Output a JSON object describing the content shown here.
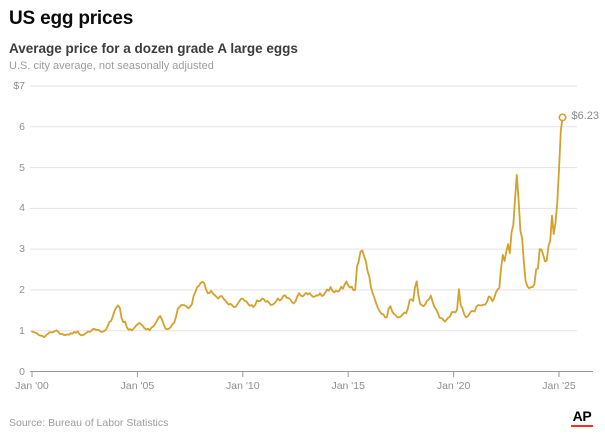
{
  "header": {
    "title": "US egg prices",
    "subtitle": "Average price for a dozen grade A large eggs",
    "note": "U.S. city average, not seasonally adjusted"
  },
  "footer": {
    "source": "Source: Bureau of Labor Statistics",
    "logo_text": "AP",
    "logo_underline_color": "#ee3224"
  },
  "chart_data": {
    "type": "line",
    "title": "US egg prices",
    "subtitle": "Average price for a dozen grade A large eggs",
    "note": "U.S. city average, not seasonally adjusted",
    "series_name": "Average price for a dozen grade A large eggs ($)",
    "x_start": "2000-01",
    "x_end": "2025-03",
    "x_frequency": "monthly",
    "ylim": [
      0,
      7
    ],
    "grid": true,
    "legend": false,
    "line_color": "#d4a12b",
    "grid_color": "#e3e3e3",
    "axis_color": "#9a9a9a",
    "yticks": [
      {
        "label": "$7",
        "value": 7
      },
      {
        "label": "6",
        "value": 6
      },
      {
        "label": "5",
        "value": 5
      },
      {
        "label": "4",
        "value": 4
      },
      {
        "label": "3",
        "value": 3
      },
      {
        "label": "2",
        "value": 2
      },
      {
        "label": "1",
        "value": 1
      },
      {
        "label": "0",
        "value": 0
      }
    ],
    "xticks": [
      {
        "label": "Jan '00",
        "month": 0
      },
      {
        "label": "Jan '05",
        "month": 60
      },
      {
        "label": "Jan '10",
        "month": 120
      },
      {
        "label": "Jan '15",
        "month": 180
      },
      {
        "label": "Jan '20",
        "month": 240
      },
      {
        "label": "Jan '25",
        "month": 300
      }
    ],
    "end_annotation": {
      "label": "$6.23",
      "value": 6.23
    },
    "values": [
      0.98,
      0.96,
      0.95,
      0.93,
      0.89,
      0.88,
      0.87,
      0.84,
      0.89,
      0.92,
      0.96,
      0.96,
      0.96,
      0.99,
      1.01,
      0.97,
      0.92,
      0.92,
      0.9,
      0.89,
      0.91,
      0.9,
      0.94,
      0.93,
      0.97,
      0.95,
      0.98,
      0.92,
      0.89,
      0.89,
      0.92,
      0.95,
      0.98,
      0.97,
      1.01,
      1.05,
      1.03,
      1.02,
      1.02,
      0.98,
      0.97,
      0.99,
      1.02,
      1.1,
      1.21,
      1.24,
      1.35,
      1.49,
      1.57,
      1.62,
      1.56,
      1.31,
      1.21,
      1.22,
      1.08,
      1.02,
      1.04,
      1.01,
      1.06,
      1.11,
      1.15,
      1.19,
      1.16,
      1.12,
      1.06,
      1.03,
      1.05,
      1.01,
      1.08,
      1.1,
      1.16,
      1.23,
      1.32,
      1.36,
      1.27,
      1.15,
      1.05,
      1.04,
      1.05,
      1.09,
      1.16,
      1.2,
      1.34,
      1.54,
      1.58,
      1.63,
      1.63,
      1.62,
      1.59,
      1.55,
      1.59,
      1.65,
      1.85,
      1.95,
      2.07,
      2.1,
      2.17,
      2.2,
      2.17,
      2.02,
      1.92,
      1.92,
      1.98,
      1.91,
      1.87,
      1.83,
      1.79,
      1.84,
      1.85,
      1.79,
      1.74,
      1.69,
      1.64,
      1.66,
      1.62,
      1.58,
      1.59,
      1.65,
      1.72,
      1.78,
      1.79,
      1.73,
      1.72,
      1.66,
      1.61,
      1.63,
      1.58,
      1.62,
      1.74,
      1.72,
      1.73,
      1.79,
      1.77,
      1.71,
      1.73,
      1.68,
      1.63,
      1.64,
      1.67,
      1.72,
      1.79,
      1.74,
      1.77,
      1.85,
      1.87,
      1.81,
      1.8,
      1.77,
      1.7,
      1.67,
      1.72,
      1.84,
      1.92,
      1.86,
      1.84,
      1.88,
      1.93,
      1.89,
      1.92,
      1.87,
      1.83,
      1.84,
      1.87,
      1.86,
      1.92,
      1.85,
      1.87,
      1.94,
      2.01,
      1.98,
      2.07,
      1.98,
      1.94,
      1.98,
      1.96,
      1.98,
      2.08,
      2.03,
      2.13,
      2.21,
      2.11,
      2.06,
      2.08,
      1.99,
      2.0,
      2.57,
      2.7,
      2.94,
      2.97,
      2.83,
      2.71,
      2.47,
      2.33,
      2.06,
      1.91,
      1.79,
      1.66,
      1.55,
      1.47,
      1.41,
      1.4,
      1.33,
      1.33,
      1.54,
      1.6,
      1.48,
      1.41,
      1.38,
      1.33,
      1.33,
      1.35,
      1.4,
      1.45,
      1.43,
      1.55,
      1.75,
      1.77,
      1.73,
      2.07,
      2.21,
      1.85,
      1.66,
      1.62,
      1.6,
      1.66,
      1.74,
      1.77,
      1.86,
      1.72,
      1.59,
      1.53,
      1.44,
      1.32,
      1.31,
      1.28,
      1.22,
      1.27,
      1.32,
      1.35,
      1.46,
      1.46,
      1.45,
      1.52,
      2.02,
      1.64,
      1.55,
      1.41,
      1.33,
      1.35,
      1.41,
      1.48,
      1.48,
      1.47,
      1.59,
      1.63,
      1.62,
      1.62,
      1.64,
      1.64,
      1.71,
      1.84,
      1.82,
      1.72,
      1.79,
      1.93,
      2.01,
      2.05,
      2.52,
      2.86,
      2.71,
      2.94,
      3.12,
      2.9,
      3.42,
      3.59,
      4.25,
      4.82,
      4.21,
      3.45,
      3.27,
      2.67,
      2.22,
      2.09,
      2.04,
      2.07,
      2.07,
      2.14,
      2.51,
      2.52,
      3.0,
      2.99,
      2.86,
      2.7,
      2.72,
      3.08,
      3.2,
      3.82,
      3.37,
      3.65,
      4.15,
      4.95,
      5.9,
      6.23
    ]
  }
}
